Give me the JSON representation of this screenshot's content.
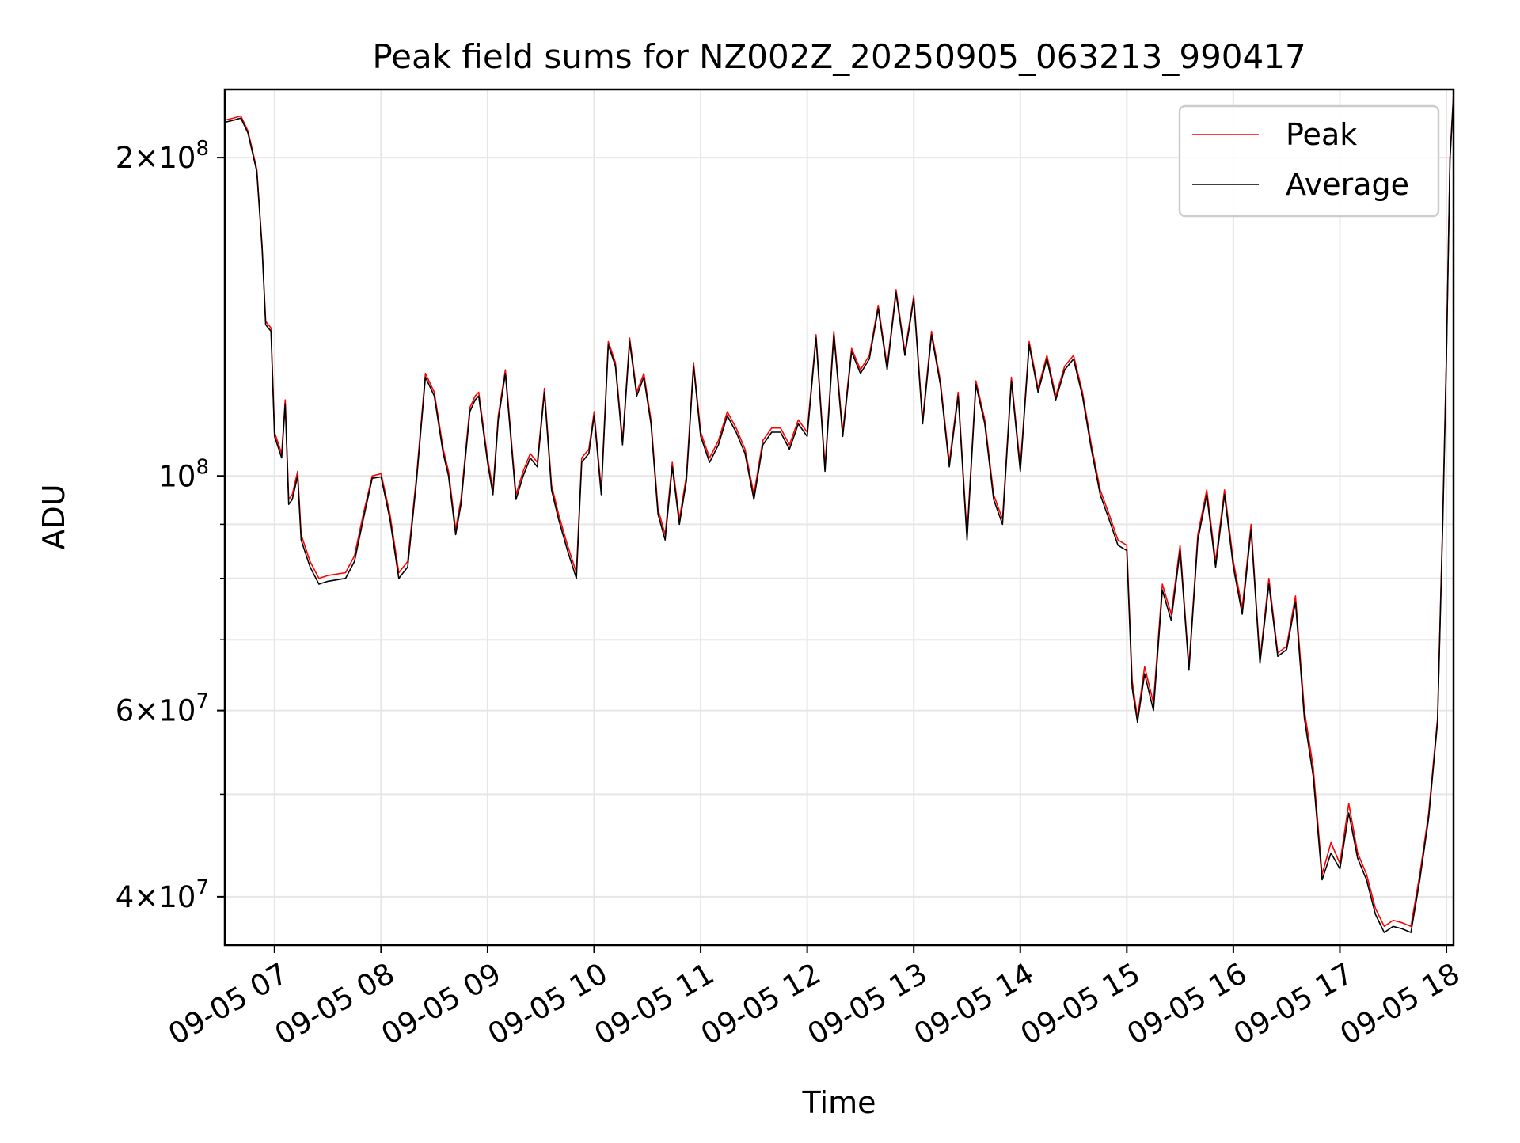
{
  "chart_data": {
    "type": "line",
    "title": "Peak field sums for NZ002Z_20250905_063213_990417",
    "xlabel": "Time",
    "ylabel": "ADU",
    "y_scale": "log",
    "xlim": [
      "09-05 06:32",
      "09-05 18:04"
    ],
    "ylim": [
      36000000,
      232000000
    ],
    "x_ticks": [
      {
        "value": "09-05 07:00",
        "label": "09-05 07"
      },
      {
        "value": "09-05 08:00",
        "label": "09-05 08"
      },
      {
        "value": "09-05 09:00",
        "label": "09-05 09"
      },
      {
        "value": "09-05 10:00",
        "label": "09-05 10"
      },
      {
        "value": "09-05 11:00",
        "label": "09-05 11"
      },
      {
        "value": "09-05 12:00",
        "label": "09-05 12"
      },
      {
        "value": "09-05 13:00",
        "label": "09-05 13"
      },
      {
        "value": "09-05 14:00",
        "label": "09-05 14"
      },
      {
        "value": "09-05 15:00",
        "label": "09-05 15"
      },
      {
        "value": "09-05 16:00",
        "label": "09-05 16"
      },
      {
        "value": "09-05 17:00",
        "label": "09-05 17"
      },
      {
        "value": "09-05 18:00",
        "label": "09-05 18"
      }
    ],
    "y_major_ticks": [
      {
        "value": 40000000,
        "mantissa": "4",
        "base": "10",
        "exp": "7"
      },
      {
        "value": 60000000,
        "mantissa": "6",
        "base": "10",
        "exp": "7"
      },
      {
        "value": 100000000,
        "mantissa": "",
        "base": "10",
        "exp": "8"
      },
      {
        "value": 200000000,
        "mantissa": "2",
        "base": "10",
        "exp": "8"
      }
    ],
    "y_minor_ticks": [
      50000000,
      70000000,
      80000000,
      90000000
    ],
    "grid": true,
    "legend_position": "upper right",
    "series": [
      {
        "name": "Peak",
        "color": "#ff0000",
        "x": [
          "09-05 06:32",
          "09-05 06:37",
          "09-05 06:41",
          "09-05 06:45",
          "09-05 06:50",
          "09-05 06:53",
          "09-05 06:55",
          "09-05 06:58",
          "09-05 07:00",
          "09-05 07:04",
          "09-05 07:06",
          "09-05 07:08",
          "09-05 07:10",
          "09-05 07:13",
          "09-05 07:15",
          "09-05 07:20",
          "09-05 07:25",
          "09-05 07:30",
          "09-05 07:40",
          "09-05 07:45",
          "09-05 07:50",
          "09-05 07:55",
          "09-05 08:00",
          "09-05 08:05",
          "09-05 08:10",
          "09-05 08:15",
          "09-05 08:20",
          "09-05 08:25",
          "09-05 08:30",
          "09-05 08:35",
          "09-05 08:38",
          "09-05 08:42",
          "09-05 08:45",
          "09-05 08:50",
          "09-05 08:53",
          "09-05 08:55",
          "09-05 09:00",
          "09-05 09:03",
          "09-05 09:06",
          "09-05 09:10",
          "09-05 09:13",
          "09-05 09:16",
          "09-05 09:20",
          "09-05 09:24",
          "09-05 09:28",
          "09-05 09:32",
          "09-05 09:36",
          "09-05 09:40",
          "09-05 09:45",
          "09-05 09:50",
          "09-05 09:53",
          "09-05 09:57",
          "09-05 10:00",
          "09-05 10:04",
          "09-05 10:08",
          "09-05 10:12",
          "09-05 10:16",
          "09-05 10:20",
          "09-05 10:24",
          "09-05 10:28",
          "09-05 10:32",
          "09-05 10:36",
          "09-05 10:40",
          "09-05 10:44",
          "09-05 10:48",
          "09-05 10:52",
          "09-05 10:56",
          "09-05 11:00",
          "09-05 11:05",
          "09-05 11:10",
          "09-05 11:15",
          "09-05 11:20",
          "09-05 11:25",
          "09-05 11:30",
          "09-05 11:35",
          "09-05 11:40",
          "09-05 11:45",
          "09-05 11:50",
          "09-05 11:55",
          "09-05 12:00",
          "09-05 12:05",
          "09-05 12:10",
          "09-05 12:15",
          "09-05 12:20",
          "09-05 12:25",
          "09-05 12:30",
          "09-05 12:35",
          "09-05 12:40",
          "09-05 12:45",
          "09-05 12:50",
          "09-05 12:55",
          "09-05 13:00",
          "09-05 13:05",
          "09-05 13:10",
          "09-05 13:15",
          "09-05 13:20",
          "09-05 13:25",
          "09-05 13:30",
          "09-05 13:35",
          "09-05 13:40",
          "09-05 13:45",
          "09-05 13:50",
          "09-05 13:55",
          "09-05 14:00",
          "09-05 14:05",
          "09-05 14:10",
          "09-05 14:15",
          "09-05 14:20",
          "09-05 14:25",
          "09-05 14:30",
          "09-05 14:35",
          "09-05 14:40",
          "09-05 14:45",
          "09-05 14:50",
          "09-05 14:55",
          "09-05 15:00",
          "09-05 15:03",
          "09-05 15:06",
          "09-05 15:10",
          "09-05 15:15",
          "09-05 15:20",
          "09-05 15:25",
          "09-05 15:30",
          "09-05 15:35",
          "09-05 15:40",
          "09-05 15:45",
          "09-05 15:50",
          "09-05 15:55",
          "09-05 16:00",
          "09-05 16:05",
          "09-05 16:10",
          "09-05 16:15",
          "09-05 16:20",
          "09-05 16:25",
          "09-05 16:30",
          "09-05 16:35",
          "09-05 16:40",
          "09-05 16:45",
          "09-05 16:50",
          "09-05 16:55",
          "09-05 17:00",
          "09-05 17:05",
          "09-05 17:10",
          "09-05 17:15",
          "09-05 17:20",
          "09-05 17:25",
          "09-05 17:30",
          "09-05 17:35",
          "09-05 17:40",
          "09-05 17:45",
          "09-05 17:50",
          "09-05 17:55",
          "09-05 17:58",
          "09-05 18:00",
          "09-05 18:02",
          "09-05 18:04"
        ],
        "values": [
          217000000,
          218000000,
          219000000,
          212000000,
          195000000,
          165000000,
          140000000,
          138000000,
          110000000,
          105000000,
          118000000,
          95000000,
          96000000,
          101000000,
          88000000,
          83000000,
          80000000,
          80500000,
          81000000,
          84000000,
          92000000,
          100000000,
          100500000,
          92000000,
          81000000,
          83000000,
          100000000,
          125000000,
          120000000,
          106000000,
          101000000,
          89000000,
          95000000,
          116000000,
          119000000,
          120000000,
          104000000,
          97000000,
          114000000,
          126000000,
          110000000,
          96000000,
          101000000,
          105000000,
          103000000,
          121000000,
          98000000,
          92000000,
          86000000,
          81000000,
          104000000,
          106000000,
          115000000,
          97000000,
          134000000,
          128000000,
          108000000,
          135000000,
          120000000,
          125000000,
          113000000,
          93000000,
          88000000,
          103000000,
          91000000,
          100000000,
          128000000,
          110000000,
          104000000,
          108000000,
          115000000,
          111000000,
          106000000,
          96000000,
          108000000,
          111000000,
          111000000,
          107000000,
          113000000,
          110000000,
          136000000,
          102000000,
          137000000,
          110000000,
          132000000,
          126000000,
          130000000,
          145000000,
          127000000,
          150000000,
          131000000,
          148000000,
          113000000,
          137000000,
          123000000,
          103000000,
          120000000,
          88000000,
          123000000,
          113000000,
          96000000,
          91000000,
          124000000,
          102000000,
          134000000,
          121000000,
          130000000,
          119000000,
          127000000,
          130000000,
          120000000,
          107000000,
          97000000,
          92000000,
          87000000,
          86000000,
          64000000,
          59000000,
          66000000,
          61000000,
          79000000,
          74000000,
          86000000,
          66000000,
          88000000,
          97000000,
          83000000,
          97000000,
          83000000,
          75000000,
          90000000,
          67000000,
          80000000,
          68000000,
          69000000,
          77000000,
          60000000,
          53000000,
          42000000,
          45000000,
          43000000,
          49000000,
          44000000,
          42000000,
          39000000,
          37500000,
          38000000,
          37800000,
          37500000,
          42000000,
          48000000,
          59000000,
          92000000,
          130000000,
          200000000,
          230000000
        ]
      },
      {
        "name": "Average",
        "color": "#000000",
        "x": [
          "09-05 06:32",
          "09-05 06:37",
          "09-05 06:41",
          "09-05 06:45",
          "09-05 06:50",
          "09-05 06:53",
          "09-05 06:55",
          "09-05 06:58",
          "09-05 07:00",
          "09-05 07:04",
          "09-05 07:06",
          "09-05 07:08",
          "09-05 07:10",
          "09-05 07:13",
          "09-05 07:15",
          "09-05 07:20",
          "09-05 07:25",
          "09-05 07:30",
          "09-05 07:40",
          "09-05 07:45",
          "09-05 07:50",
          "09-05 07:55",
          "09-05 08:00",
          "09-05 08:05",
          "09-05 08:10",
          "09-05 08:15",
          "09-05 08:20",
          "09-05 08:25",
          "09-05 08:30",
          "09-05 08:35",
          "09-05 08:38",
          "09-05 08:42",
          "09-05 08:45",
          "09-05 08:50",
          "09-05 08:53",
          "09-05 08:55",
          "09-05 09:00",
          "09-05 09:03",
          "09-05 09:06",
          "09-05 09:10",
          "09-05 09:13",
          "09-05 09:16",
          "09-05 09:20",
          "09-05 09:24",
          "09-05 09:28",
          "09-05 09:32",
          "09-05 09:36",
          "09-05 09:40",
          "09-05 09:45",
          "09-05 09:50",
          "09-05 09:53",
          "09-05 09:57",
          "09-05 10:00",
          "09-05 10:04",
          "09-05 10:08",
          "09-05 10:12",
          "09-05 10:16",
          "09-05 10:20",
          "09-05 10:24",
          "09-05 10:28",
          "09-05 10:32",
          "09-05 10:36",
          "09-05 10:40",
          "09-05 10:44",
          "09-05 10:48",
          "09-05 10:52",
          "09-05 10:56",
          "09-05 11:00",
          "09-05 11:05",
          "09-05 11:10",
          "09-05 11:15",
          "09-05 11:20",
          "09-05 11:25",
          "09-05 11:30",
          "09-05 11:35",
          "09-05 11:40",
          "09-05 11:45",
          "09-05 11:50",
          "09-05 11:55",
          "09-05 12:00",
          "09-05 12:05",
          "09-05 12:10",
          "09-05 12:15",
          "09-05 12:20",
          "09-05 12:25",
          "09-05 12:30",
          "09-05 12:35",
          "09-05 12:40",
          "09-05 12:45",
          "09-05 12:50",
          "09-05 12:55",
          "09-05 13:00",
          "09-05 13:05",
          "09-05 13:10",
          "09-05 13:15",
          "09-05 13:20",
          "09-05 13:25",
          "09-05 13:30",
          "09-05 13:35",
          "09-05 13:40",
          "09-05 13:45",
          "09-05 13:50",
          "09-05 13:55",
          "09-05 14:00",
          "09-05 14:05",
          "09-05 14:10",
          "09-05 14:15",
          "09-05 14:20",
          "09-05 14:25",
          "09-05 14:30",
          "09-05 14:35",
          "09-05 14:40",
          "09-05 14:45",
          "09-05 14:50",
          "09-05 14:55",
          "09-05 15:00",
          "09-05 15:03",
          "09-05 15:06",
          "09-05 15:10",
          "09-05 15:15",
          "09-05 15:20",
          "09-05 15:25",
          "09-05 15:30",
          "09-05 15:35",
          "09-05 15:40",
          "09-05 15:45",
          "09-05 15:50",
          "09-05 15:55",
          "09-05 16:00",
          "09-05 16:05",
          "09-05 16:10",
          "09-05 16:15",
          "09-05 16:20",
          "09-05 16:25",
          "09-05 16:30",
          "09-05 16:35",
          "09-05 16:40",
          "09-05 16:45",
          "09-05 16:50",
          "09-05 16:55",
          "09-05 17:00",
          "09-05 17:05",
          "09-05 17:10",
          "09-05 17:15",
          "09-05 17:20",
          "09-05 17:25",
          "09-05 17:30",
          "09-05 17:35",
          "09-05 17:40",
          "09-05 17:45",
          "09-05 17:50",
          "09-05 17:55",
          "09-05 17:58",
          "09-05 18:00",
          "09-05 18:02",
          "09-05 18:04"
        ],
        "values": [
          216000000,
          217000000,
          218000000,
          211000000,
          194000000,
          164000000,
          139000000,
          137000000,
          109000000,
          104000000,
          117000000,
          94000000,
          95000000,
          100000000,
          87000000,
          82000000,
          79000000,
          79500000,
          80000000,
          83000000,
          91000000,
          99500000,
          99800000,
          91000000,
          80000000,
          82000000,
          99000000,
          124000000,
          119000000,
          105000000,
          100000000,
          88000000,
          94000000,
          115000000,
          118000000,
          119000000,
          103000000,
          96000000,
          113000000,
          125000000,
          109000000,
          95000000,
          100000000,
          104000000,
          102000000,
          120000000,
          97000000,
          91000000,
          85000000,
          80000000,
          103000000,
          105000000,
          114000000,
          96000000,
          133000000,
          127000000,
          107000000,
          134000000,
          119000000,
          124000000,
          112000000,
          92000000,
          87000000,
          102000000,
          90000000,
          99000000,
          127000000,
          109000000,
          103000000,
          107000000,
          114000000,
          110000000,
          105000000,
          95000000,
          107000000,
          110000000,
          110000000,
          106000000,
          112000000,
          109000000,
          135000000,
          101000000,
          136000000,
          109000000,
          131000000,
          125000000,
          129000000,
          144000000,
          126000000,
          149000000,
          130000000,
          147000000,
          112000000,
          136000000,
          122000000,
          102000000,
          119000000,
          87000000,
          122000000,
          112000000,
          95000000,
          90000000,
          123000000,
          101000000,
          133000000,
          120000000,
          129000000,
          118000000,
          126000000,
          129000000,
          119000000,
          106000000,
          96000000,
          91000000,
          86000000,
          85000000,
          63000000,
          58500000,
          65000000,
          60000000,
          78000000,
          73000000,
          85000000,
          65500000,
          87000000,
          96000000,
          82000000,
          96000000,
          82000000,
          74000000,
          89000000,
          66500000,
          79000000,
          67500000,
          68500000,
          76000000,
          59000000,
          52000000,
          41500000,
          44000000,
          42500000,
          48000000,
          43500000,
          41500000,
          38500000,
          37000000,
          37500000,
          37300000,
          37000000,
          41500000,
          47500000,
          58500000,
          91000000,
          129000000,
          199000000,
          229000000
        ]
      }
    ]
  }
}
